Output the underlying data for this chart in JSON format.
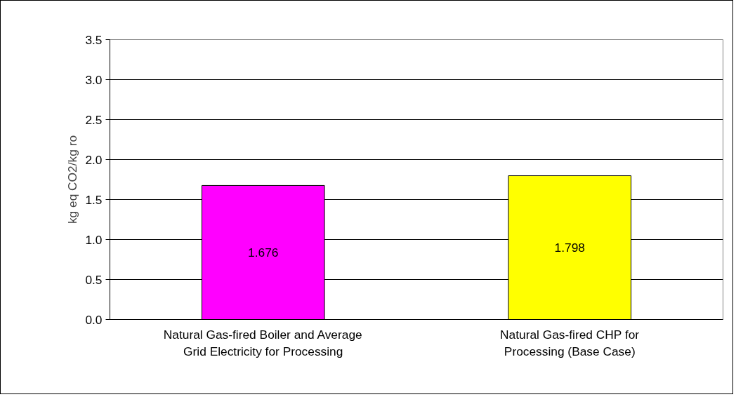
{
  "chart_data": {
    "type": "bar",
    "ylabel": "kg eq CO2/kg ro",
    "categories": [
      "Natural Gas-fired Boiler and Average\nGrid Electricity for Processing",
      "Natural Gas-fired CHP for\nProcessing (Base Case)"
    ],
    "values": [
      1.676,
      1.798
    ],
    "colors": [
      "#ff00ff",
      "#ffff00"
    ],
    "ylim": [
      0,
      3.5
    ],
    "yticks": [
      {
        "value": 0,
        "label": "0.0"
      },
      {
        "value": 0.5,
        "label": "0.5"
      },
      {
        "value": 1,
        "label": "1.0"
      },
      {
        "value": 1.5,
        "label": "1.5"
      },
      {
        "value": 2,
        "label": "2.0"
      },
      {
        "value": 2.5,
        "label": "2.5"
      },
      {
        "value": 3,
        "label": "3.0"
      },
      {
        "value": 3.5,
        "label": "3.5"
      }
    ],
    "grid": "y",
    "data_labels": true
  }
}
